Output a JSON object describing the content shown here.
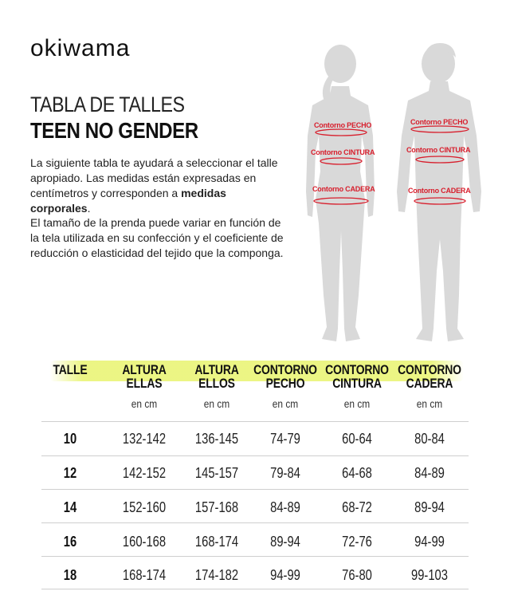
{
  "brand": {
    "logo": "okiwama"
  },
  "heading": {
    "line1": "TABLA DE TALLES",
    "line2": "TEEN NO GENDER"
  },
  "intro": {
    "p1_a": "La siguiente tabla te ayudará a seleccionar el talle apropiado. Las medidas están expresadas en centímetros y corresponden a ",
    "p1_bold": "medidas corporales",
    "p1_end": ".",
    "p2": "El tamaño de la prenda puede variar en función de la tela utilizada en su confección y el coeficiente de reducción o elasticidad del tejido que la componga."
  },
  "figures": {
    "female": {
      "chest": "Contorno PECHO",
      "waist": "Contorno CINTURA",
      "hip": "Contorno CADERA"
    },
    "male": {
      "chest": "Contorno PECHO",
      "waist": "Contorno CINTURA",
      "hip": "Contorno CADERA"
    },
    "colors": {
      "silhouette": "#d9d9d9",
      "measure": "#d81e2c"
    }
  },
  "table": {
    "highlight_color": "#e8f36e",
    "columns": [
      {
        "line1": "TALLE",
        "line2": "",
        "unit": ""
      },
      {
        "line1": "ALTURA",
        "line2": "ELLAS",
        "unit": "en cm"
      },
      {
        "line1": "ALTURA",
        "line2": "ELLOS",
        "unit": "en cm"
      },
      {
        "line1": "CONTORNO",
        "line2": "PECHO",
        "unit": "en cm"
      },
      {
        "line1": "CONTORNO",
        "line2": "CINTURA",
        "unit": "en cm"
      },
      {
        "line1": "CONTORNO",
        "line2": "CADERA",
        "unit": "en cm"
      }
    ],
    "rows": [
      [
        "10",
        "132-142",
        "136-145",
        "74-79",
        "60-64",
        "80-84"
      ],
      [
        "12",
        "142-152",
        "145-157",
        "79-84",
        "64-68",
        "84-89"
      ],
      [
        "14",
        "152-160",
        "157-168",
        "84-89",
        "68-72",
        "89-94"
      ],
      [
        "16",
        "160-168",
        "168-174",
        "89-94",
        "72-76",
        "94-99"
      ],
      [
        "18",
        "168-174",
        "174-182",
        "94-99",
        "76-80",
        "99-103"
      ]
    ]
  }
}
